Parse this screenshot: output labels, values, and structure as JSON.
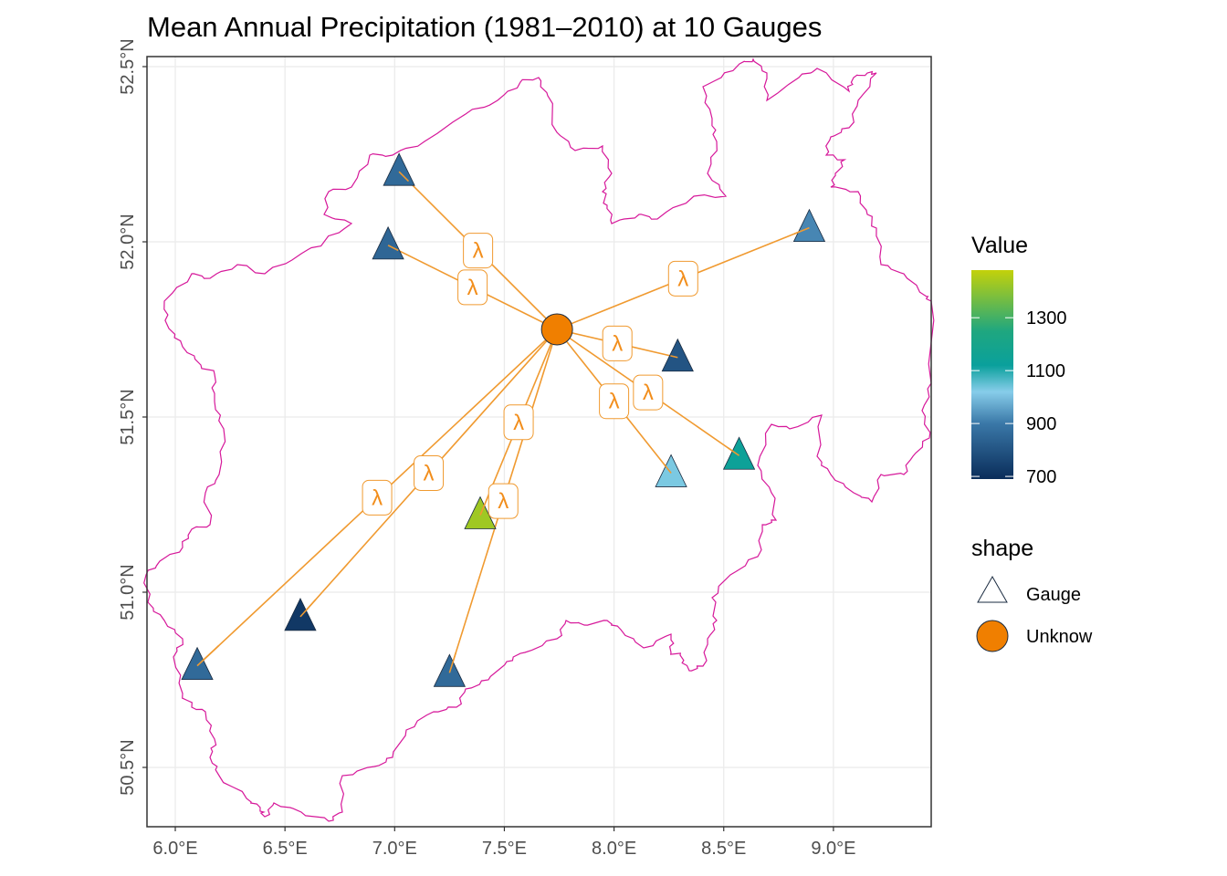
{
  "chart_data": {
    "type": "scatter",
    "subtype": "map",
    "title": "Mean Annual Precipitation (1981–2010) at 10 Gauges",
    "xlabel": "",
    "ylabel": "",
    "xlim": [
      5.87,
      9.45
    ],
    "ylim": [
      50.32,
      52.58
    ],
    "grid": true,
    "x_ticks": [
      6.0,
      6.5,
      7.0,
      7.5,
      8.0,
      8.5,
      9.0
    ],
    "x_tick_labels": [
      "6.0°E",
      "6.5°E",
      "7.0°E",
      "7.5°E",
      "8.0°E",
      "8.5°E",
      "9.0°E"
    ],
    "y_ticks": [
      50.5,
      51.0,
      51.5,
      52.0,
      52.5
    ],
    "y_tick_labels": [
      "50.5°N",
      "51.0°N",
      "51.5°N",
      "52.0°N",
      "52.5°N"
    ],
    "unknown_point": {
      "lon": 7.74,
      "lat": 51.75,
      "label": "Unknow",
      "color": "#f07f00"
    },
    "gauges": [
      {
        "lon": 7.02,
        "lat": 52.2,
        "value": 860
      },
      {
        "lon": 6.97,
        "lat": 51.99,
        "value": 850
      },
      {
        "lon": 8.89,
        "lat": 52.04,
        "value": 920
      },
      {
        "lon": 8.29,
        "lat": 51.67,
        "value": 800
      },
      {
        "lon": 8.57,
        "lat": 51.39,
        "value": 1140
      },
      {
        "lon": 8.26,
        "lat": 51.34,
        "value": 1030
      },
      {
        "lon": 7.39,
        "lat": 51.22,
        "value": 1430
      },
      {
        "lon": 6.57,
        "lat": 50.93,
        "value": 720
      },
      {
        "lon": 6.1,
        "lat": 50.79,
        "value": 860
      },
      {
        "lon": 7.25,
        "lat": 50.77,
        "value": 860
      }
    ],
    "connector_label": "λ",
    "connector_color": "#f09a30",
    "boundary_color": "#d6189a",
    "color_scale": {
      "title": "Value",
      "min": 690,
      "max": 1480,
      "ticks": [
        700,
        900,
        1100,
        1300
      ],
      "tick_labels": [
        "700",
        "900",
        "1100",
        "1300"
      ],
      "stops": [
        {
          "value": 690,
          "color": "#0a2d5a"
        },
        {
          "value": 900,
          "color": "#3a78a8"
        },
        {
          "value": 1020,
          "color": "#87cdea"
        },
        {
          "value": 1120,
          "color": "#0aa09c"
        },
        {
          "value": 1250,
          "color": "#1fa77f"
        },
        {
          "value": 1480,
          "color": "#c3d10a"
        }
      ]
    },
    "shape_legend": {
      "title": "shape",
      "items": [
        {
          "label": "Gauge",
          "shape": "triangle-icon"
        },
        {
          "label": "Unknow",
          "shape": "circle-icon"
        }
      ]
    }
  }
}
